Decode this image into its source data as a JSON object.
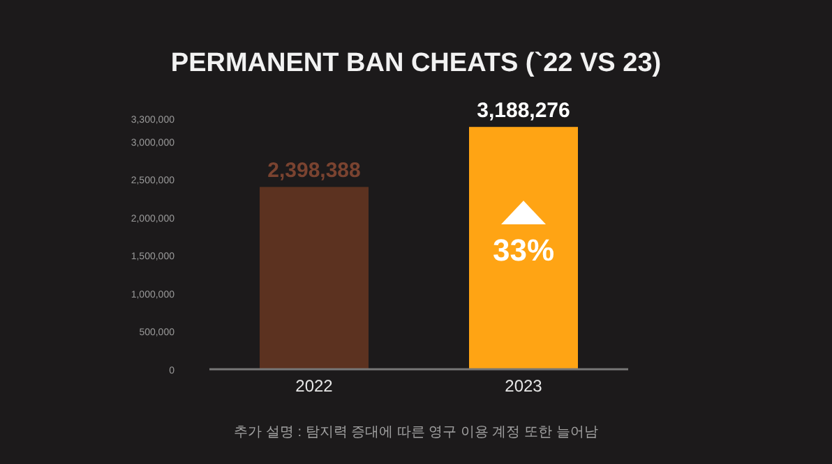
{
  "chart_data": {
    "type": "bar",
    "title": "PERMANENT BAN CHEATS (`22 VS 23)",
    "categories": [
      "2022",
      "2023"
    ],
    "values": [
      2398388,
      3188276
    ],
    "colors": [
      "#5c3220",
      "#ffa414"
    ],
    "value_labels": [
      "2,398,388",
      "3,188,276"
    ],
    "ylim": [
      0,
      3300000
    ],
    "yticks": [
      {
        "value": 0,
        "label": "0"
      },
      {
        "value": 500000,
        "label": "500,000"
      },
      {
        "value": 1000000,
        "label": "1,000,000"
      },
      {
        "value": 1500000,
        "label": "1,500,000"
      },
      {
        "value": 2000000,
        "label": "2,000,000"
      },
      {
        "value": 2500000,
        "label": "2,500,000"
      },
      {
        "value": 3000000,
        "label": "3,000,000"
      },
      {
        "value": 3300000,
        "label": "3,300,000"
      }
    ],
    "grid": false,
    "annotations": [
      "33%",
      "추가 설명 : 탐지력 증대에 따른 영구 이용 계정 또한 늘어남"
    ]
  }
}
